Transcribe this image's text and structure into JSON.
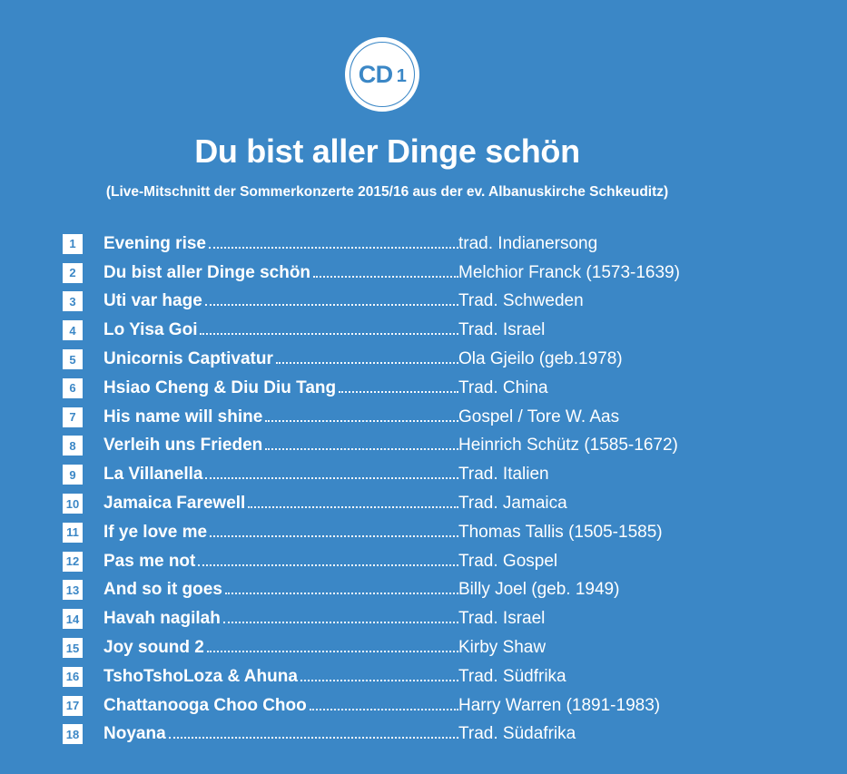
{
  "badge": {
    "label": "CD",
    "number": "1"
  },
  "title": "Du bist aller Dinge schön",
  "subtitle": "(Live-Mitschnitt der Sommerkonzerte 2015/16 aus der ev. Albanuskirche Schkeuditz)",
  "tracks": [
    {
      "number": "1",
      "title": "Evening rise",
      "composer": "trad. Indianersong"
    },
    {
      "number": "2",
      "title": "Du bist aller Dinge schön",
      "composer": "Melchior Franck (1573-1639)"
    },
    {
      "number": "3",
      "title": "Uti var hage",
      "composer": "Trad. Schweden"
    },
    {
      "number": "4",
      "title": "Lo Yisa Goi",
      "composer": "Trad. Israel"
    },
    {
      "number": "5",
      "title": "Unicornis Captivatur",
      "composer": "Ola Gjeilo (geb.1978)"
    },
    {
      "number": "6",
      "title": "Hsiao Cheng & Diu Diu Tang",
      "composer": "Trad. China"
    },
    {
      "number": "7",
      "title": "His name will shine",
      "composer": "Gospel / Tore W. Aas"
    },
    {
      "number": "8",
      "title": "Verleih uns Frieden",
      "composer": "Heinrich Schütz (1585-1672)"
    },
    {
      "number": "9",
      "title": "La Villanella",
      "composer": "Trad. Italien"
    },
    {
      "number": "10",
      "title": "Jamaica Farewell",
      "composer": "Trad. Jamaica"
    },
    {
      "number": "11",
      "title": "If ye love me",
      "composer": "Thomas Tallis (1505-1585)"
    },
    {
      "number": "12",
      "title": "Pas me not",
      "composer": "Trad. Gospel"
    },
    {
      "number": "13",
      "title": "And so it goes",
      "composer": "Billy Joel (geb. 1949)"
    },
    {
      "number": "14",
      "title": "Havah nagilah",
      "composer": "Trad. Israel"
    },
    {
      "number": "15",
      "title": "Joy sound 2",
      "composer": "Kirby Shaw"
    },
    {
      "number": "16",
      "title": "TshoTshoLoza & Ahuna",
      "composer": "Trad. Südfrika"
    },
    {
      "number": "17",
      "title": "Chattanooga Choo Choo",
      "composer": "Harry Warren (1891-1983)"
    },
    {
      "number": "18",
      "title": "Noyana",
      "composer": "Trad. Südafrika"
    }
  ],
  "colors": {
    "background": "#3b87c6",
    "text": "#ffffff"
  }
}
